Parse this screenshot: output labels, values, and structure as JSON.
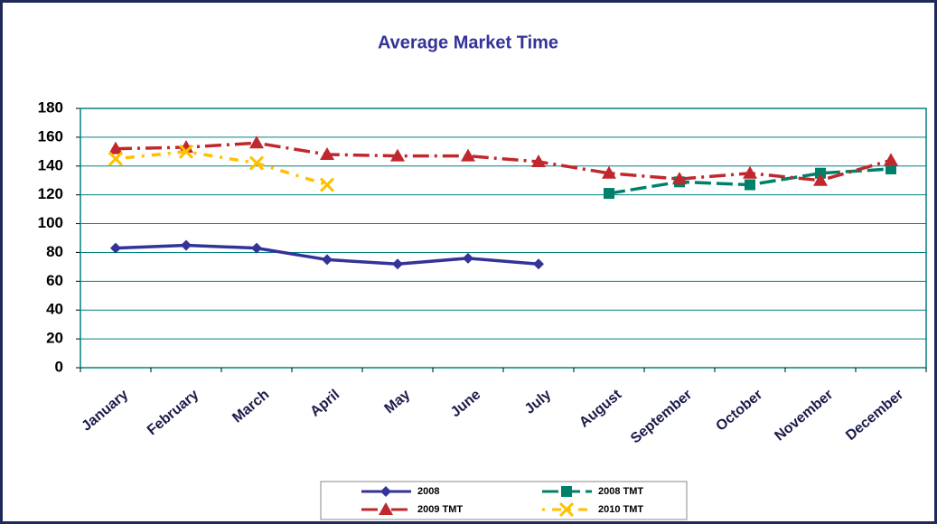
{
  "chart_data": {
    "type": "line",
    "title": "Average Market Time",
    "categories": [
      "January",
      "February",
      "March",
      "April",
      "May",
      "June",
      "July",
      "August",
      "September",
      "October",
      "November",
      "December"
    ],
    "series": [
      {
        "name": "2008",
        "color": "#333399",
        "values": [
          83,
          85,
          83,
          75,
          72,
          76,
          72,
          null,
          null,
          null,
          null,
          null
        ]
      },
      {
        "name": "2008 TMT",
        "color": "#00806a",
        "values": [
          null,
          null,
          null,
          null,
          null,
          null,
          null,
          121,
          129,
          127,
          135,
          138
        ]
      },
      {
        "name": "2009 TMT",
        "color": "#c0282d",
        "values": [
          152,
          153,
          156,
          148,
          147,
          147,
          143,
          135,
          131,
          135,
          130,
          144
        ]
      },
      {
        "name": "2010 TMT",
        "color": "#ffc000",
        "values": [
          145,
          150,
          142,
          127,
          null,
          null,
          null,
          null,
          null,
          null,
          null,
          null
        ]
      }
    ],
    "ylim": [
      0,
      180
    ],
    "yticks": [
      0,
      20,
      40,
      60,
      80,
      100,
      120,
      140,
      160,
      180
    ],
    "grid": true
  }
}
